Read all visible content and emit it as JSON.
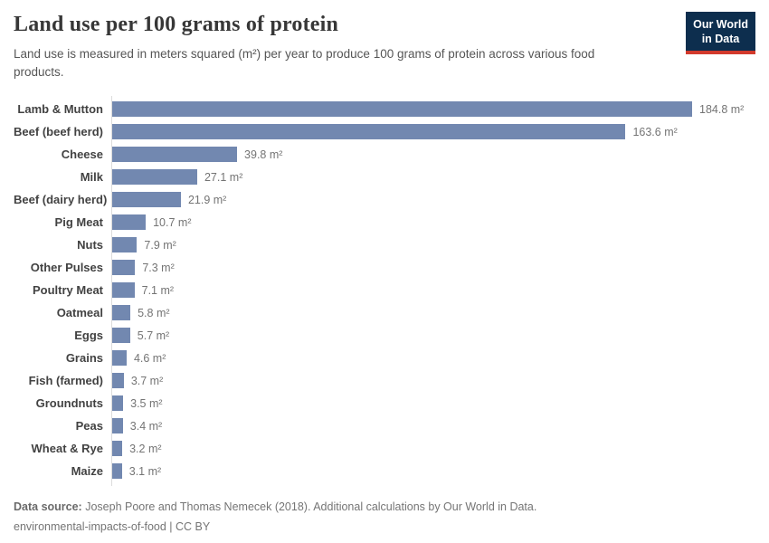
{
  "header": {
    "title": "Land use per 100 grams of protein",
    "subtitle": "Land use is measured in meters squared (m²) per year to produce 100 grams of protein across various food products.",
    "logo": {
      "line1": "Our World",
      "line2": "in Data",
      "bg_color": "#0d2e4e",
      "accent_color": "#d23a2c"
    }
  },
  "chart_data": {
    "type": "bar",
    "orientation": "horizontal",
    "title": "Land use per 100 grams of protein",
    "categories": [
      "Lamb & Mutton",
      "Beef (beef herd)",
      "Cheese",
      "Milk",
      "Beef (dairy herd)",
      "Pig Meat",
      "Nuts",
      "Other Pulses",
      "Poultry Meat",
      "Oatmeal",
      "Eggs",
      "Grains",
      "Fish (farmed)",
      "Groundnuts",
      "Peas",
      "Wheat & Rye",
      "Maize"
    ],
    "values": [
      184.8,
      163.6,
      39.8,
      27.1,
      21.9,
      10.7,
      7.9,
      7.3,
      7.1,
      5.8,
      5.7,
      4.6,
      3.7,
      3.5,
      3.4,
      3.2,
      3.1
    ],
    "unit": "m²",
    "xlabel": "",
    "ylabel": "",
    "xlim": [
      0,
      190
    ],
    "grid": false,
    "legend": "none",
    "bar_color": "#7288b0",
    "axis_color": "#dcdcdc"
  },
  "footer": {
    "source_label": "Data source:",
    "source_text": " Joseph Poore and Thomas Nemecek (2018). Additional calculations by Our World in Data.",
    "link_text": "environmental-impacts-of-food",
    "license_separator": " | ",
    "license_text": "CC BY"
  }
}
